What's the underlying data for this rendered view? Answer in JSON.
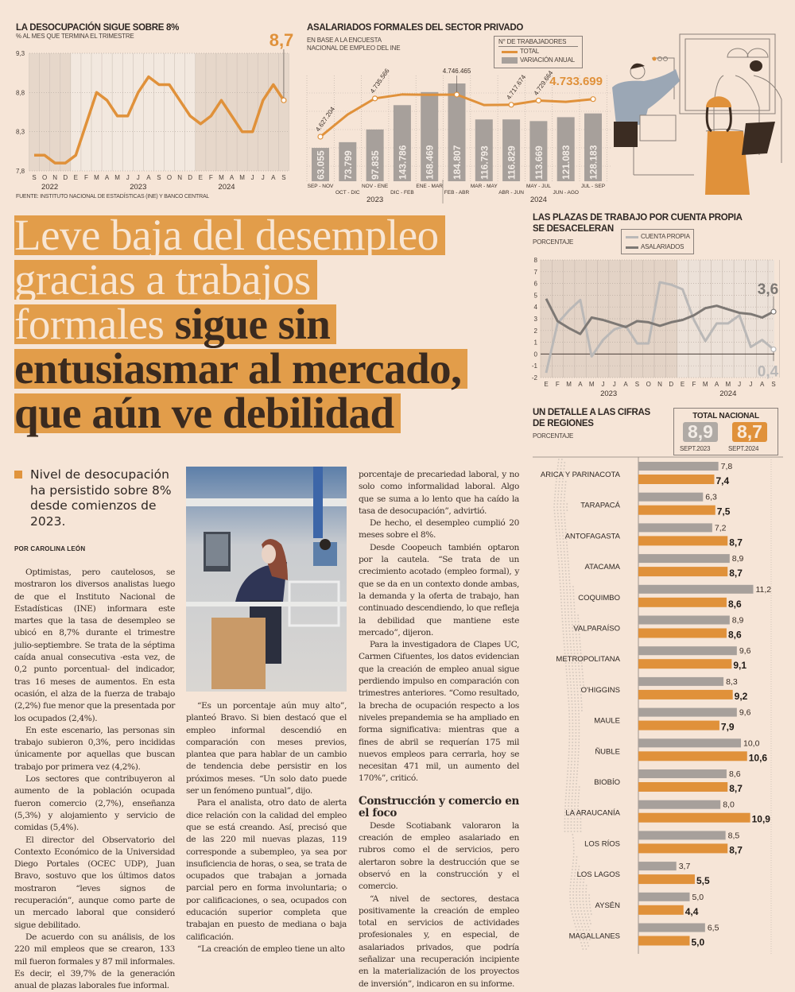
{
  "colors": {
    "accent": "#e0913a",
    "bar_gray": "#a7a09b",
    "dark_gray": "#7d7874",
    "light_gray": "#bab8b7",
    "background": "#f6e5d7"
  },
  "chart1": {
    "title": "LA DESOCUPACIÓN SIGUE SOBRE 8%",
    "subtitle": "% AL MES QUE TERMINA EL TRIMESTRE",
    "highlight": "8,7",
    "source": "FUENTE: INSTITUTO NACIONAL DE ESTADÍSTICAS (INE) Y BANCO CENTRAL"
  },
  "chart2": {
    "title": "ASALARIADOS FORMALES DEL SECTOR PRIVADO",
    "subtitle_lines": [
      "EN BASE A LA ENCUESTA",
      "NACIONAL DE EMPLEO DEL INE"
    ],
    "legend": {
      "header": "N° DE TRABAJADORES",
      "total": "TOTAL",
      "variation": "VARIACIÓN ANUAL"
    }
  },
  "chart3": {
    "title_lines": [
      "LAS PLAZAS DE TRABAJO POR CUENTA PROPIA",
      "SE DESACELERAN"
    ],
    "subtitle": "PORCENTAJE",
    "legend": {
      "a": "CUENTA PROPIA",
      "b": "ASALARIADOS"
    }
  },
  "chart4": {
    "title_lines": [
      "UN DETALLE A LAS CIFRAS",
      "DE REGIONES"
    ],
    "subtitle": "PORCENTAJE",
    "total": {
      "label": "TOTAL NACIONAL",
      "v2023": "8,9",
      "v2024": "8,7",
      "l2023": "SEPT.2023",
      "l2024": "SEPT.2024"
    }
  },
  "chart_data": [
    {
      "type": "line",
      "title": "LA DESOCUPACIÓN SIGUE SOBRE 8%",
      "ylabel": "% AL MES QUE TERMINA EL TRIMESTRE",
      "ylim": [
        7.8,
        9.3
      ],
      "yticks": [
        "7,8",
        "8,3",
        "8,8",
        "9,3"
      ],
      "ytick_values": [
        7.8,
        8.3,
        8.8,
        9.3
      ],
      "x": [
        "S",
        "O",
        "N",
        "D",
        "E",
        "F",
        "M",
        "A",
        "M",
        "J",
        "J",
        "A",
        "S",
        "O",
        "N",
        "D",
        "E",
        "F",
        "M",
        "A",
        "M",
        "J",
        "J",
        "A",
        "S"
      ],
      "years": [
        {
          "label": "2022",
          "at": 1.5
        },
        {
          "label": "2023",
          "at": 10
        },
        {
          "label": "2024",
          "at": 18.5
        }
      ],
      "series": [
        {
          "values": [
            8.0,
            8.0,
            7.9,
            7.9,
            8.0,
            8.4,
            8.8,
            8.7,
            8.5,
            8.5,
            8.8,
            9.0,
            8.9,
            8.9,
            8.7,
            8.5,
            8.4,
            8.5,
            8.7,
            8.5,
            8.3,
            8.3,
            8.7,
            8.9,
            8.7
          ]
        }
      ],
      "annotation": "8,7",
      "grid": true
    },
    {
      "type": "bar+line",
      "title": "ASALARIADOS FORMALES DEL SECTOR PRIVADO",
      "categories": [
        "SEP - NOV",
        "OCT - DIC",
        "NOV - ENE",
        "DIC - FEB",
        "ENE - MAR",
        "FEB - ABR",
        "MAR - MAY",
        "ABR - JUN",
        "MAY - JUL",
        "JUN - AGO",
        "JUL - SEP"
      ],
      "years": [
        {
          "label": "2023",
          "at": 2
        },
        {
          "label": "2024",
          "at": 8
        }
      ],
      "series": [
        {
          "name": "VARIACIÓN ANUAL",
          "type": "bar",
          "values": [
            63055,
            73799,
            97835,
            143786,
            168469,
            184807,
            116793,
            116829,
            113669,
            121083,
            128183
          ],
          "labels": [
            "63.055",
            "73.799",
            "97.835",
            "143.786",
            "168.469",
            "184.807",
            "116.793",
            "116.829",
            "113.669",
            "121.083",
            "128.183"
          ]
        },
        {
          "name": "TOTAL",
          "type": "line",
          "values": [
            4627204,
            4690000,
            4735566,
            4747000,
            4746000,
            4746465,
            4717000,
            4717674,
            4729664,
            4726000,
            4733699
          ],
          "labels": [
            "4.627.204",
            "",
            "4.735.566",
            "",
            "",
            "4.746.465",
            "",
            "4.717.674",
            "4.729.664",
            "",
            "4.733.699"
          ]
        }
      ]
    },
    {
      "type": "line",
      "title": "LAS PLAZAS DE TRABAJO POR CUENTA PROPIA SE DESACELERAN",
      "ylabel": "PORCENTAJE",
      "ylim": [
        -2,
        8
      ],
      "yticks": [
        "-2",
        "-1",
        "0",
        "1",
        "2",
        "3",
        "4",
        "5",
        "6",
        "7",
        "8"
      ],
      "x": [
        "E",
        "F",
        "M",
        "A",
        "M",
        "J",
        "J",
        "A",
        "S",
        "O",
        "N",
        "D",
        "E",
        "F",
        "M",
        "A",
        "M",
        "J",
        "J",
        "A",
        "S"
      ],
      "years": [
        {
          "label": "2023",
          "at": 5.5
        },
        {
          "label": "2024",
          "at": 16
        }
      ],
      "series": [
        {
          "name": "CUENTA PROPIA",
          "values": [
            -1.6,
            2.6,
            3.7,
            4.6,
            -0.2,
            1.2,
            2.1,
            2.4,
            0.9,
            0.9,
            6.1,
            5.9,
            5.5,
            2.9,
            1.1,
            2.6,
            2.6,
            3.3,
            0.6,
            1.2,
            0.4
          ],
          "end_label": "0,4"
        },
        {
          "name": "ASALARIADOS",
          "values": [
            4.7,
            2.8,
            2.2,
            1.7,
            3.1,
            2.9,
            2.6,
            2.3,
            2.8,
            2.7,
            2.4,
            2.7,
            2.9,
            3.3,
            3.9,
            4.1,
            3.8,
            3.5,
            3.4,
            3.1,
            3.6
          ],
          "end_label": "3,6"
        }
      ],
      "legend": "top-center",
      "grid": true
    },
    {
      "type": "bar",
      "orientation": "horizontal",
      "title": "UN DETALLE A LAS CIFRAS DE REGIONES",
      "ylabel": "PORCENTAJE",
      "categories": [
        "ARICA Y PARINACOTA",
        "TARAPACÁ",
        "ANTOFAGASTA",
        "ATACAMA",
        "COQUIMBO",
        "VALPARAÍSO",
        "METROPOLITANA",
        "O'HIGGINS",
        "MAULE",
        "ÑUBLE",
        "BIOBÍO",
        "LA ARAUCANÍA",
        "LOS RÍOS",
        "LOS LAGOS",
        "AYSÉN",
        "MAGALLANES"
      ],
      "series": [
        {
          "name": "SEPT.2023",
          "values": [
            7.8,
            6.3,
            7.2,
            8.9,
            11.2,
            8.9,
            9.6,
            8.3,
            9.6,
            10.0,
            8.6,
            8.0,
            8.5,
            3.7,
            5.0,
            6.5
          ],
          "labels": [
            "7,8",
            "6,3",
            "7,2",
            "8,9",
            "11,2",
            "8,9",
            "9,6",
            "8,3",
            "9,6",
            "10,0",
            "8,6",
            "8,0",
            "8,5",
            "3,7",
            "5,0",
            "6,5"
          ]
        },
        {
          "name": "SEPT.2024",
          "values": [
            7.4,
            7.5,
            8.7,
            8.7,
            8.6,
            8.6,
            9.1,
            9.2,
            7.9,
            10.6,
            8.7,
            10.9,
            8.7,
            5.5,
            4.4,
            5.0
          ],
          "labels": [
            "7,4",
            "7,5",
            "8,7",
            "8,7",
            "8,6",
            "8,6",
            "9,1",
            "9,2",
            "7,9",
            "10,6",
            "8,7",
            "10,9",
            "8,7",
            "5,5",
            "4,4",
            "5,0"
          ]
        }
      ]
    }
  ],
  "headline": {
    "lines": [
      {
        "light": "Leve baja del desempleo",
        "dark": ""
      },
      {
        "light": "gracias a trabajos",
        "dark": ""
      },
      {
        "light": "formales ",
        "dark": "sigue sin"
      },
      {
        "light": "",
        "dark": "entusiasmar al mercado,"
      },
      {
        "light": "",
        "dark": "que aún ve debilidad"
      }
    ]
  },
  "lead": "Nivel de desocupación ha persistido sobre 8% desde comienzos de 2023.",
  "byline": "POR CAROLINA LEÓN",
  "article": {
    "col1": [
      "Optimistas, pero cautelosos, se mostraron los diversos analistas luego de que el Instituto Nacional de Estadísticas (INE) informara este martes que la tasa de desempleo se ubicó en 8,7% durante el trimestre julio-septiembre. Se trata de la séptima caída anual consecutiva -esta vez, de 0,2 punto porcentual- del indicador, tras 16 meses de aumentos. En esta ocasión, el alza de la fuerza de trabajo (2,2%) fue menor que la presentada por los ocupados (2,4%).",
      "En este escenario, las personas sin trabajo subieron 0,3%, pero incididas únicamente por aquellas que buscan trabajo por primera vez (4,2%).",
      "Los sectores que contribuyeron al aumento de la población ocupada fueron comercio (2,7%), enseñanza (5,3%) y alojamiento y servicio de comidas (5,4%).",
      "El director del Observatorio del Contexto Económico de la Universidad Diego Portales (OCEC UDP), Juan Bravo, sostuvo que los últimos datos mostraron “leves signos de recuperación”, aunque como parte de un mercado laboral que consideró sigue debilitado.",
      "De acuerdo con su análisis, de los 220 mil empleos que se crearon, 133 mil fueron formales y 87 mil informales. Es decir, el 39,7% de la generación anual de plazas laborales fue informal."
    ],
    "col2": [
      "“Es un porcentaje aún muy alto”, planteó Bravo. Si bien destacó que el empleo informal descendió en comparación con meses previos, plantea que para hablar de un cambio de tendencia debe persistir en los próximos meses. “Un solo dato puede ser un fenómeno puntual”, dijo.",
      "Para el analista, otro dato de alerta dice relación con la calidad del empleo que se está creando. Así, precisó que de las 220 mil nuevas plazas, 119 corresponde a subempleo, ya sea por insuficiencia de horas, o sea, se trata de ocupados que trabajan a jornada parcial pero en forma involuntaria; o por calificaciones, o sea, ocupados con educación superior completa que trabajan en puesto de mediana o baja calificación.",
      "“La creación de empleo tiene un alto"
    ],
    "col3": [
      "porcentaje de precariedad laboral, y no solo como informalidad laboral. Algo que se suma a lo lento que ha caído la tasa de desocupación”, advirtió.",
      "De hecho, el desempleo cumplió 20 meses sobre el 8%.",
      "Desde Coopeuch también optaron por la cautela. “Se trata de un crecimiento acotado (empleo formal), y que se da en un contexto donde ambas, la demanda y la oferta de trabajo, han continuado descendiendo, lo que refleja la debilidad que mantiene este mercado”, dijeron.",
      "Para la investigadora de Clapes UC, Carmen Cifuentes, los datos evidencian que la creación de empleo anual sigue perdiendo impulso en comparación con trimestres anteriores. “Como resultado, la brecha de ocupación respecto a los niveles prepandemia se ha ampliado en forma significativa: mientras que a fines de abril se requerían 175 mil nuevos empleos para cerrarla, hoy se necesitan 471 mil, un aumento del 170%”, criticó."
    ],
    "subhead": "Construcción y comercio en el foco",
    "col3b": [
      "Desde Scotiabank valoraron la creación de empleo asalariado en rubros como el de servicios, pero alertaron sobre la destrucción que se observó en la construcción y el comercio.",
      "“A nivel de sectores, destaca positivamente la creación de empleo total en servicios de actividades profesionales y, en especial, de asalariados privados, que podría señalizar una recuperación incipiente en la materialización de los proyectos de inversión”, indicaron en su informe."
    ]
  },
  "icons": {
    "illustration": "workers-illustration",
    "photo": "office-worker-photo",
    "map": "chile-map-dots"
  }
}
